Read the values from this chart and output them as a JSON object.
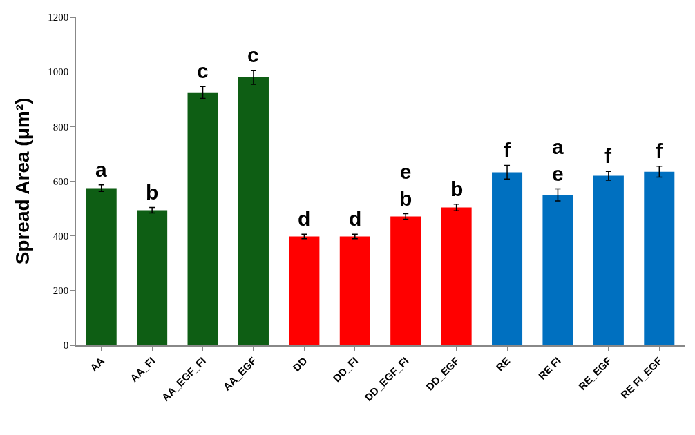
{
  "chart_data": {
    "type": "bar",
    "ylabel": "Spread Area (μm²)",
    "categories": [
      "AA",
      "AA_FI",
      "AA_EGF_FI",
      "AA_EGF",
      "DD",
      "DD_FI",
      "DD_EGF_FI",
      "DD_EGF",
      "RE",
      "RE FI",
      "RE_EGF",
      "RE FI_EGF"
    ],
    "values": [
      575,
      494,
      925,
      980,
      398,
      398,
      471,
      504,
      633,
      550,
      620,
      635
    ],
    "errors": [
      12,
      10,
      22,
      25,
      8,
      8,
      10,
      12,
      25,
      22,
      16,
      20
    ],
    "colors": [
      "#0e5e14",
      "#0e5e14",
      "#0e5e14",
      "#0e5e14",
      "#ff0000",
      "#ff0000",
      "#ff0000",
      "#ff0000",
      "#0070c0",
      "#0070c0",
      "#0070c0",
      "#0070c0"
    ],
    "ylim": [
      0,
      1200
    ],
    "yticks": [
      0,
      200,
      400,
      600,
      800,
      1000,
      1200
    ],
    "annotations": [
      {
        "text": "a",
        "x": "AA",
        "y": 575
      },
      {
        "text": "b",
        "x": "AA_FI",
        "y": 494
      },
      {
        "text": "c",
        "x": "AA_EGF_FI",
        "y": 925
      },
      {
        "text": "c",
        "x": "AA_EGF",
        "y": 980
      },
      {
        "text": "d",
        "x": "DD",
        "y": 398
      },
      {
        "text": "d",
        "x": "DD_FI",
        "y": 398
      },
      {
        "text": "e\nb",
        "x": "DD_EGF_FI",
        "y": 471
      },
      {
        "text": "b",
        "x": "DD_EGF",
        "y": 504
      },
      {
        "text": "f",
        "x": "RE",
        "y": 633
      },
      {
        "text": "a\ne",
        "x": "RE FI",
        "y": 550
      },
      {
        "text": "f",
        "x": "RE_EGF",
        "y": 620
      },
      {
        "text": "f",
        "x": "RE FI_EGF",
        "y": 635
      }
    ]
  }
}
